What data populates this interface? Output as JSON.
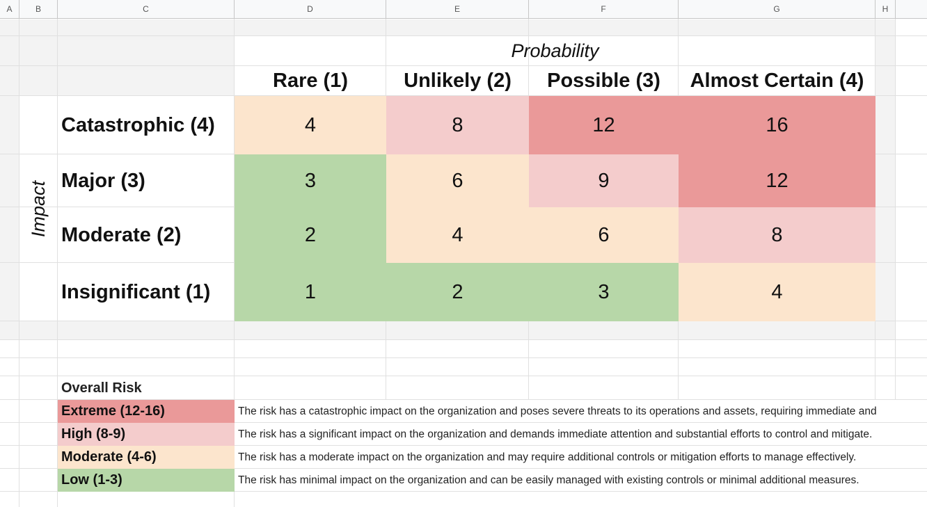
{
  "columns": [
    "A",
    "B",
    "C",
    "D",
    "E",
    "F",
    "G",
    "H"
  ],
  "matrix": {
    "probability_title": "Probability",
    "impact_title": "Impact",
    "col_headers": [
      "Rare (1)",
      "Unlikely (2)",
      "Possible (3)",
      "Almost Certain (4)"
    ],
    "rows": [
      {
        "label": "Catastrophic (4)",
        "values": [
          "4",
          "8",
          "12",
          "16"
        ]
      },
      {
        "label": "Major (3)",
        "values": [
          "3",
          "6",
          "9",
          "12"
        ]
      },
      {
        "label": "Moderate (2)",
        "values": [
          "2",
          "4",
          "6",
          "8"
        ]
      },
      {
        "label": "Insignificant (1)",
        "values": [
          "1",
          "2",
          "3",
          "4"
        ]
      }
    ]
  },
  "legend": {
    "title": "Overall Risk",
    "items": [
      {
        "label": "Extreme (12-16)",
        "desc": "The risk has a catastrophic impact on the organization and poses severe threats to its operations and assets, requiring immediate and"
      },
      {
        "label": "High (8-9)",
        "desc": "The risk has a significant impact on the organization and demands immediate attention and substantial efforts to control and mitigate."
      },
      {
        "label": "Moderate (4-6)",
        "desc": "The risk has a moderate impact on the organization and may require additional controls or mitigation efforts to manage effectively."
      },
      {
        "label": "Low (1-3)",
        "desc": "The risk has minimal impact on the organization and can be easily managed with existing controls or minimal additional measures."
      }
    ]
  },
  "colors": {
    "low": "#b7d7a8",
    "moderate": "#fce5cd",
    "high": "#f4cccc",
    "extreme": "#ea9999",
    "header_bg": "#f8f9fa",
    "gridline": "#e0e0e0",
    "blank_fill": "#f3f3f3"
  }
}
